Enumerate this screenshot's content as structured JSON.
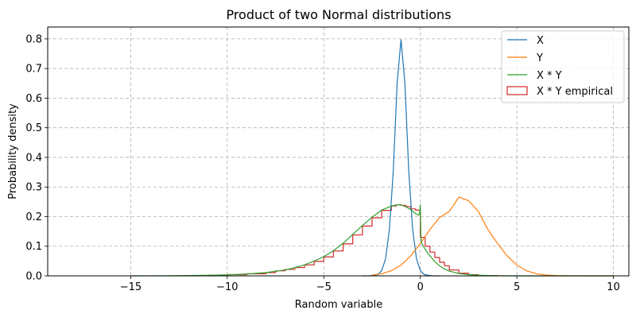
{
  "chart_data": {
    "type": "line",
    "title": "Product of two Normal distributions",
    "xlabel": "Random variable",
    "ylabel": "Probability density",
    "xlim": [
      -19.3,
      10.8
    ],
    "ylim": [
      0,
      0.84
    ],
    "xticks": [
      -15,
      -10,
      -5,
      0,
      5,
      10
    ],
    "xtick_labels": [
      "−15",
      "−10",
      "−5",
      "0",
      "5",
      "10"
    ],
    "yticks": [
      0.0,
      0.1,
      0.2,
      0.3,
      0.4,
      0.5,
      0.6,
      0.7,
      0.8
    ],
    "ytick_labels": [
      "0.0",
      "0.1",
      "0.2",
      "0.3",
      "0.4",
      "0.5",
      "0.6",
      "0.7",
      "0.8"
    ],
    "grid": true,
    "legend_position": "top-right",
    "series": [
      {
        "name": "X",
        "color": "#1f77b4",
        "kind": "line",
        "x": [
          -3.0,
          -2.6,
          -2.2,
          -2.0,
          -1.8,
          -1.6,
          -1.4,
          -1.2,
          -1.0,
          -0.8,
          -0.6,
          -0.4,
          -0.2,
          0.0,
          0.2,
          0.6,
          1.0
        ],
        "y": [
          0.0,
          0.0001,
          0.0044,
          0.0175,
          0.0578,
          0.158,
          0.355,
          0.652,
          0.7979,
          0.652,
          0.355,
          0.158,
          0.0578,
          0.0175,
          0.0044,
          0.0001,
          0.0
        ]
      },
      {
        "name": "Y",
        "color": "#ff7f0e",
        "kind": "line",
        "x": [
          -2.5,
          -2.0,
          -1.5,
          -1.0,
          -0.5,
          0.0,
          0.5,
          1.0,
          1.5,
          2.0,
          2.5,
          3.0,
          3.5,
          4.0,
          4.5,
          5.0,
          5.5,
          6.0,
          6.5,
          7.0,
          8.0,
          9.0,
          10.0
        ],
        "y": [
          0.0027,
          0.0072,
          0.0172,
          0.0363,
          0.0672,
          0.1094,
          0.1566,
          0.197,
          0.2179,
          0.266,
          0.2539,
          0.2179,
          0.1566,
          0.1094,
          0.0672,
          0.0363,
          0.0172,
          0.0072,
          0.0027,
          0.0009,
          0.0001,
          0.0,
          0.0
        ]
      },
      {
        "name": "X * Y",
        "color": "#2ca02c",
        "kind": "line",
        "x": [
          -15,
          -13,
          -11,
          -10,
          -9,
          -8,
          -7,
          -6.5,
          -6,
          -5.5,
          -5,
          -4.5,
          -4,
          -3.5,
          -3,
          -2.5,
          -2,
          -1.5,
          -1.2,
          -1.0,
          -0.8,
          -0.6,
          -0.4,
          -0.2,
          -0.08,
          -0.03,
          0,
          0.03,
          0.08,
          0.2,
          0.4,
          0.6,
          0.8,
          1.0,
          1.2,
          1.5,
          2.0,
          2.5,
          3.0,
          4.0,
          5,
          7,
          10
        ],
        "y": [
          0.0,
          0.0005,
          0.0018,
          0.0035,
          0.006,
          0.011,
          0.02,
          0.028,
          0.037,
          0.05,
          0.065,
          0.085,
          0.11,
          0.14,
          0.17,
          0.198,
          0.222,
          0.236,
          0.24,
          0.239,
          0.235,
          0.228,
          0.218,
          0.208,
          0.205,
          0.215,
          0.24,
          0.13,
          0.11,
          0.095,
          0.075,
          0.06,
          0.045,
          0.034,
          0.025,
          0.016,
          0.008,
          0.004,
          0.002,
          0.0005,
          0.0,
          0.0,
          0.0
        ]
      },
      {
        "name": "X * Y empirical",
        "color": "#d62728",
        "kind": "step",
        "edges": [
          -11,
          -10,
          -9,
          -8,
          -7.5,
          -7,
          -6.5,
          -6,
          -5.5,
          -5,
          -4.5,
          -4,
          -3.5,
          -3,
          -2.5,
          -2,
          -1.5,
          -1.25,
          -1,
          -0.75,
          -0.5,
          -0.25,
          0,
          0.25,
          0.5,
          0.75,
          1,
          1.25,
          1.5,
          2,
          2.5,
          3,
          4
        ],
        "values": [
          0.002,
          0.004,
          0.007,
          0.011,
          0.017,
          0.022,
          0.028,
          0.037,
          0.049,
          0.064,
          0.084,
          0.108,
          0.138,
          0.168,
          0.196,
          0.221,
          0.236,
          0.24,
          0.238,
          0.234,
          0.226,
          0.222,
          0.13,
          0.1,
          0.08,
          0.062,
          0.046,
          0.034,
          0.02,
          0.009,
          0.004,
          0.001
        ]
      }
    ]
  }
}
